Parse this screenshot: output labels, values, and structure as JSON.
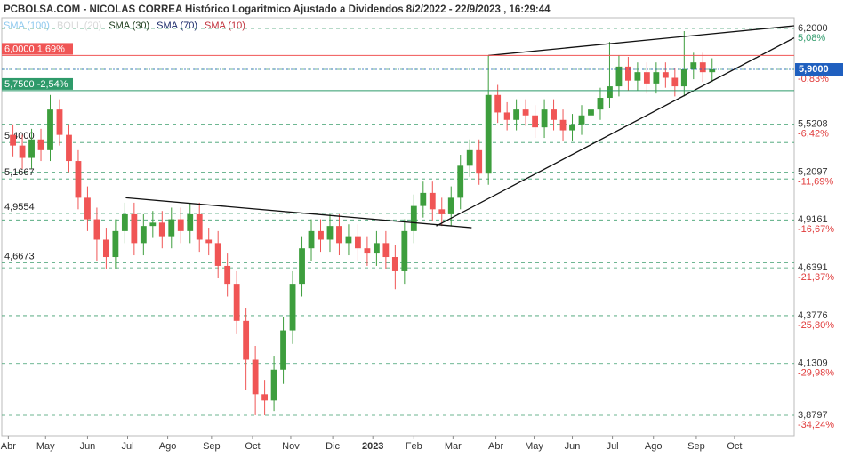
{
  "chart_data": {
    "type": "candlestick",
    "title": "PCBOLSA.COM - NICOLAS CORREA Histórico Logaritmico Ajustado a Dividendos 8/2/2022 - 22/9/2023 , 16:29:44",
    "legend": [
      {
        "label": "SMA (100)",
        "color": "#8ec9ee"
      },
      {
        "label": "BOLL (20)",
        "color": "#d8d8d8"
      },
      {
        "label": "SMA (30)",
        "color": "#1a3a1a"
      },
      {
        "label": "SMA (70)",
        "color": "#1a2a6a"
      },
      {
        "label": "SMA (10)",
        "color": "#c0303a"
      }
    ],
    "log_scale": true,
    "up_color": "#3d9e3d",
    "down_color": "#f05555",
    "xlim": [
      -1.2,
      83.8
    ],
    "xticks": [
      {
        "value": -0.5,
        "label": "Abr"
      },
      {
        "value": 3.5,
        "label": "May"
      },
      {
        "value": 8.0,
        "label": "Jun"
      },
      {
        "value": 12.3,
        "label": "Jul"
      },
      {
        "value": 16.6,
        "label": "Ago"
      },
      {
        "value": 21.3,
        "label": "Sep"
      },
      {
        "value": 25.7,
        "label": "Oct"
      },
      {
        "value": 29.8,
        "label": "Nov"
      },
      {
        "value": 34.3,
        "label": "Dic"
      },
      {
        "value": 38.6,
        "label": "2023"
      },
      {
        "value": 43.0,
        "label": "Feb"
      },
      {
        "value": 47.2,
        "label": "Mar"
      },
      {
        "value": 51.8,
        "label": "Abr"
      },
      {
        "value": 55.9,
        "label": "May"
      },
      {
        "value": 60.0,
        "label": "Jun"
      },
      {
        "value": 64.3,
        "label": "Jul"
      },
      {
        "value": 68.7,
        "label": "Ago"
      },
      {
        "value": 73.3,
        "label": "Sep"
      },
      {
        "value": 77.4,
        "label": "Oct"
      }
    ],
    "ylim": [
      3.8797,
      6.2
    ],
    "yticks": [
      {
        "value": 6.2,
        "label": "6,2000",
        "pct": "5,08%"
      },
      {
        "value": 5.9,
        "label": "5,9000",
        "pct": "-0,83%"
      },
      {
        "value": 5.5208,
        "label": "5,5208",
        "pct": "-6,42%"
      },
      {
        "value": 5.2097,
        "label": "5,2097",
        "pct": "-11,69%"
      },
      {
        "value": 4.9161,
        "label": "4,9161",
        "pct": "-16,67%"
      },
      {
        "value": 4.6391,
        "label": "4,6391",
        "pct": "-21,37%"
      },
      {
        "value": 4.3776,
        "label": "4,3776",
        "pct": "-25,80%"
      },
      {
        "value": 4.1309,
        "label": "4,1309",
        "pct": "-29,98%"
      },
      {
        "value": 3.8797,
        "label": "3,8797",
        "pct": "-34,24%"
      }
    ],
    "levels": [
      {
        "value": 5.4,
        "label": "5,4000"
      },
      {
        "value": 5.1667,
        "label": "5,1667"
      },
      {
        "value": 4.9554,
        "label": "4,9554"
      },
      {
        "value": 4.6673,
        "label": "4,6673"
      }
    ],
    "alerts": [
      {
        "value": 6.0,
        "label": "6,0000  1,69%",
        "color": "#f05555"
      },
      {
        "value": 5.75,
        "label": "5,7500  -2,54%",
        "color": "#2e9a6a"
      }
    ],
    "trendlines": [
      [
        51,
        6.0,
        83.8,
        6.22
      ],
      [
        45.4,
        4.88,
        83.8,
        6.13
      ],
      [
        12.1,
        5.05,
        49.2,
        4.87
      ]
    ],
    "x": [
      0,
      1,
      2,
      3,
      4,
      5,
      6,
      7,
      8,
      9,
      10,
      11,
      12,
      13,
      14,
      15,
      16,
      17,
      18,
      19,
      20,
      21,
      22,
      23,
      24,
      25,
      26,
      27,
      28,
      29,
      30,
      31,
      32,
      33,
      34,
      35,
      36,
      37,
      38,
      39,
      40,
      41,
      42,
      43,
      44,
      45,
      46,
      47,
      48,
      49,
      50,
      51,
      52,
      53,
      54,
      55,
      56,
      57,
      58,
      59,
      60,
      61,
      62,
      63,
      64,
      65,
      66,
      67,
      68,
      69,
      70,
      71,
      72,
      73,
      74,
      75
    ],
    "open": [
      5.45,
      5.38,
      5.3,
      5.42,
      5.35,
      5.62,
      5.45,
      5.28,
      5.05,
      4.92,
      4.8,
      4.7,
      4.85,
      4.95,
      4.78,
      4.88,
      4.9,
      4.82,
      4.92,
      4.85,
      4.95,
      4.8,
      4.78,
      4.65,
      4.55,
      4.35,
      4.15,
      3.98,
      3.95,
      4.1,
      4.3,
      4.55,
      4.75,
      4.85,
      4.8,
      4.88,
      4.78,
      4.82,
      4.75,
      4.72,
      4.78,
      4.7,
      4.62,
      4.85,
      5.0,
      5.08,
      4.98,
      4.95,
      5.05,
      5.25,
      5.35,
      5.2,
      5.72,
      5.6,
      5.55,
      5.62,
      5.58,
      5.5,
      5.62,
      5.55,
      5.48,
      5.52,
      5.58,
      5.62,
      5.7,
      5.78,
      5.92,
      5.82,
      5.88,
      5.8,
      5.88,
      5.84,
      5.78,
      5.9,
      5.95,
      5.88
    ],
    "high": [
      5.52,
      5.45,
      5.49,
      5.49,
      5.72,
      5.69,
      5.52,
      5.35,
      5.12,
      4.99,
      4.87,
      4.92,
      5.02,
      5.02,
      4.95,
      4.97,
      4.97,
      4.99,
      4.99,
      5.02,
      5.02,
      4.87,
      4.85,
      4.72,
      4.62,
      4.42,
      4.22,
      4.05,
      4.17,
      4.37,
      4.62,
      4.82,
      4.92,
      4.92,
      4.95,
      4.95,
      4.89,
      4.89,
      4.82,
      4.85,
      4.85,
      4.77,
      4.92,
      5.07,
      5.15,
      5.15,
      5.05,
      5.12,
      5.32,
      5.42,
      5.42,
      6.0,
      5.79,
      5.67,
      5.69,
      5.69,
      5.65,
      5.69,
      5.69,
      5.62,
      5.59,
      5.65,
      5.69,
      5.77,
      6.1,
      6.0,
      5.99,
      5.95,
      5.95,
      5.95,
      5.95,
      5.91,
      6.18,
      6.02,
      6.02,
      5.98
    ],
    "low": [
      5.31,
      5.23,
      5.23,
      5.28,
      5.28,
      5.38,
      5.21,
      4.98,
      4.85,
      4.68,
      4.63,
      4.63,
      4.78,
      4.71,
      4.71,
      4.81,
      4.75,
      4.75,
      4.78,
      4.78,
      4.73,
      4.71,
      4.58,
      4.48,
      4.28,
      4.0,
      3.88,
      3.88,
      3.9,
      4.03,
      4.23,
      4.48,
      4.68,
      4.73,
      4.73,
      4.71,
      4.71,
      4.68,
      4.65,
      4.65,
      4.63,
      4.52,
      4.55,
      4.78,
      4.93,
      4.91,
      4.88,
      4.88,
      4.98,
      5.18,
      5.13,
      5.13,
      5.53,
      5.48,
      5.48,
      5.51,
      5.43,
      5.43,
      5.48,
      5.41,
      5.41,
      5.45,
      5.51,
      5.55,
      5.63,
      5.71,
      5.75,
      5.75,
      5.73,
      5.73,
      5.77,
      5.71,
      5.71,
      5.83,
      5.81,
      5.81
    ],
    "close": [
      5.38,
      5.3,
      5.42,
      5.35,
      5.62,
      5.45,
      5.28,
      5.05,
      4.92,
      4.8,
      4.7,
      4.85,
      4.95,
      4.78,
      4.88,
      4.9,
      4.82,
      4.92,
      4.85,
      4.95,
      4.8,
      4.78,
      4.65,
      4.55,
      4.35,
      4.15,
      3.98,
      3.95,
      4.1,
      4.3,
      4.55,
      4.75,
      4.85,
      4.8,
      4.88,
      4.78,
      4.82,
      4.75,
      4.72,
      4.78,
      4.7,
      4.62,
      4.85,
      5.0,
      5.08,
      4.98,
      4.95,
      5.05,
      5.25,
      5.35,
      5.2,
      5.72,
      5.6,
      5.55,
      5.62,
      5.58,
      5.5,
      5.62,
      5.55,
      5.48,
      5.52,
      5.58,
      5.62,
      5.7,
      5.78,
      5.92,
      5.82,
      5.88,
      5.8,
      5.88,
      5.84,
      5.78,
      5.9,
      5.95,
      5.88,
      5.9
    ]
  }
}
